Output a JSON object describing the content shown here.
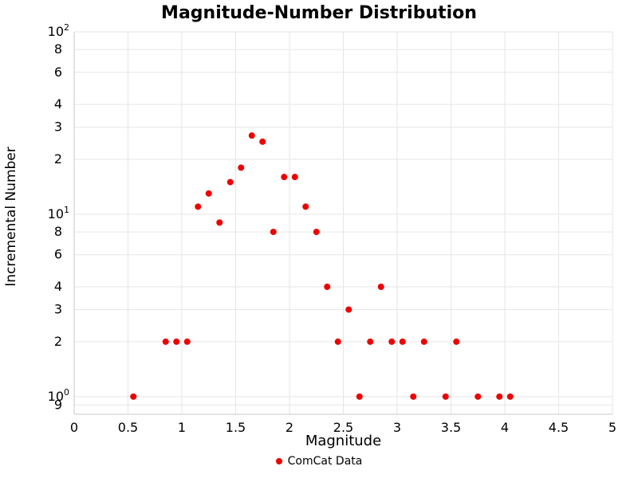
{
  "chart_data": {
    "type": "scatter",
    "title": "Magnitude-Number Distribution",
    "xlabel": "Magnitude",
    "ylabel": "Incremental Number",
    "xlim": [
      0,
      5
    ],
    "ylim": [
      0.8,
      100
    ],
    "yscale": "log",
    "grid": true,
    "grid_color": "#e6e6e6",
    "axis_color": "#c8c8c8",
    "xticks": [
      {
        "value": 0,
        "label": "0"
      },
      {
        "value": 0.5,
        "label": "0.5"
      },
      {
        "value": 1,
        "label": "1"
      },
      {
        "value": 1.5,
        "label": "1.5"
      },
      {
        "value": 2,
        "label": "2"
      },
      {
        "value": 2.5,
        "label": "2.5"
      },
      {
        "value": 3,
        "label": "3"
      },
      {
        "value": 3.5,
        "label": "3.5"
      },
      {
        "value": 4,
        "label": "4"
      },
      {
        "value": 4.5,
        "label": "4.5"
      },
      {
        "value": 5,
        "label": "5"
      }
    ],
    "yticks": [
      {
        "value": 100,
        "label": "10",
        "sup": "2"
      },
      {
        "value": 80,
        "label": "8"
      },
      {
        "value": 60,
        "label": "6"
      },
      {
        "value": 40,
        "label": "4"
      },
      {
        "value": 30,
        "label": "3"
      },
      {
        "value": 20,
        "label": "2"
      },
      {
        "value": 10,
        "label": "10",
        "sup": "1"
      },
      {
        "value": 8,
        "label": "8"
      },
      {
        "value": 6,
        "label": "6"
      },
      {
        "value": 4,
        "label": "4"
      },
      {
        "value": 3,
        "label": "3"
      },
      {
        "value": 2,
        "label": "2"
      },
      {
        "value": 1,
        "label": "10",
        "sup": "0"
      },
      {
        "value": 0.9,
        "label": "9"
      }
    ],
    "legend": {
      "position": "bottom",
      "entries": [
        {
          "label": "ComCat Data",
          "marker": "dot",
          "color": "#ee0000"
        }
      ]
    },
    "series": [
      {
        "name": "ComCat Data",
        "color": "#ee0000",
        "marker_size": 4,
        "x": [
          0.55,
          0.85,
          0.95,
          1.05,
          1.15,
          1.25,
          1.35,
          1.45,
          1.55,
          1.65,
          1.75,
          1.85,
          1.95,
          2.05,
          2.15,
          2.25,
          2.35,
          2.45,
          2.55,
          2.65,
          2.75,
          2.85,
          2.95,
          3.05,
          3.15,
          3.25,
          3.45,
          3.55,
          3.75,
          3.95,
          4.05
        ],
        "y": [
          1,
          2,
          2,
          2,
          11,
          13,
          9,
          15,
          18,
          27,
          25,
          8,
          16,
          16,
          11,
          8,
          4,
          2,
          3,
          1,
          2,
          4,
          2,
          2,
          1,
          2,
          1,
          2,
          1,
          1,
          1
        ]
      }
    ]
  }
}
